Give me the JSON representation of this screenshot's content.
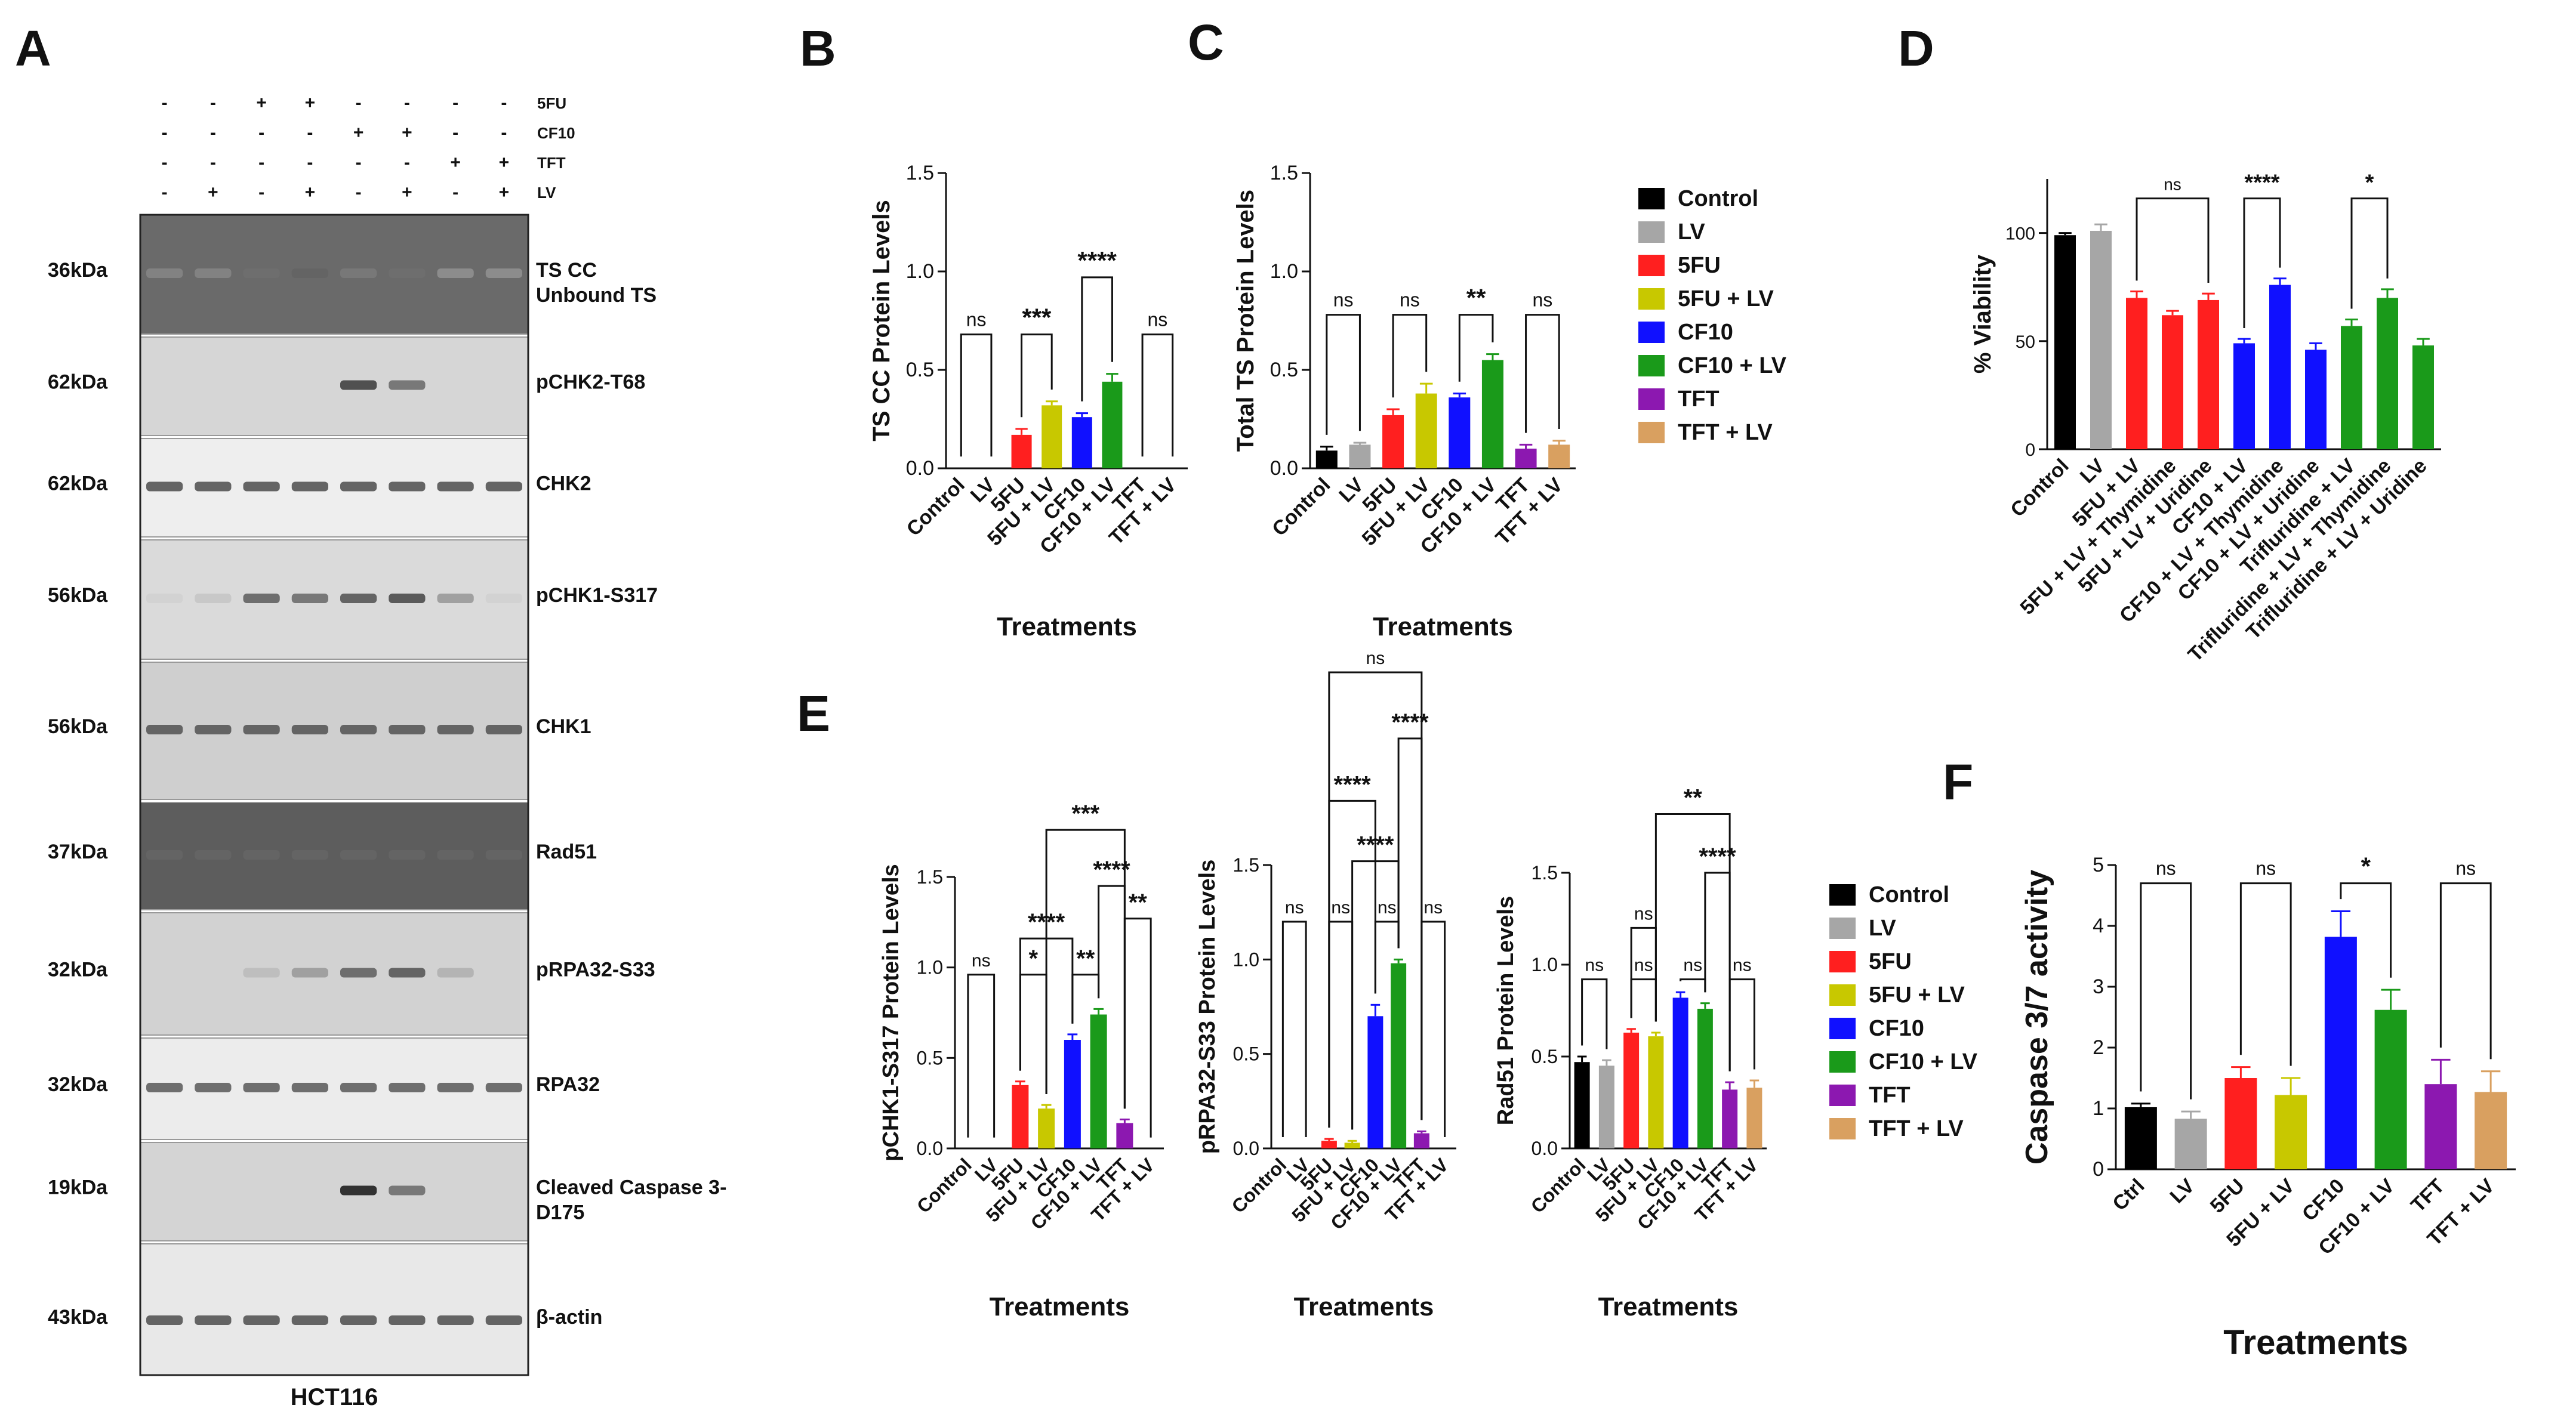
{
  "panel_labels": {
    "A": "A",
    "B": "B",
    "C": "C",
    "D": "D",
    "E": "E",
    "F": "F"
  },
  "colors": {
    "Control": "#000000",
    "LV": "#a6a6a6",
    "5FU": "#ff1f1f",
    "5FU + LV": "#c8c800",
    "CF10": "#1010ff",
    "CF10 + LV": "#1a9a1a",
    "TFT": "#8c18b0",
    "TFT + LV": "#d9a060",
    "Ctrl": "#000000"
  },
  "blot": {
    "treatment_rows": [
      "5FU",
      "CF10",
      "TFT",
      "LV"
    ],
    "treatment_signs": [
      [
        "-",
        "-",
        "+",
        "+",
        "-",
        "-",
        "-",
        "-"
      ],
      [
        "-",
        "-",
        "-",
        "-",
        "+",
        "+",
        "-",
        "-"
      ],
      [
        "-",
        "-",
        "-",
        "-",
        "-",
        "-",
        "+",
        "+"
      ],
      [
        "-",
        "+",
        "-",
        "+",
        "-",
        "+",
        "-",
        "+"
      ]
    ],
    "bands": [
      {
        "mw": "36kDa",
        "label": "TS CC",
        "label2": "Unbound TS",
        "intensity": [
          0.45,
          0.45,
          0.55,
          0.6,
          0.5,
          0.55,
          0.4,
          0.4
        ]
      },
      {
        "mw": "62kDa",
        "label": "pCHK2-T68",
        "intensity": [
          0,
          0,
          0,
          0,
          0.7,
          0.5,
          0,
          0
        ]
      },
      {
        "mw": "62kDa",
        "label": "CHK2",
        "intensity": [
          0.6,
          0.6,
          0.6,
          0.6,
          0.6,
          0.6,
          0.6,
          0.6
        ]
      },
      {
        "mw": "56kDa",
        "label": "pCHK1-S317",
        "intensity": [
          0.05,
          0.1,
          0.55,
          0.5,
          0.6,
          0.65,
          0.3,
          0.05
        ]
      },
      {
        "mw": "56kDa",
        "label": "CHK1",
        "intensity": [
          0.6,
          0.6,
          0.6,
          0.6,
          0.6,
          0.6,
          0.6,
          0.6
        ]
      },
      {
        "mw": "37kDa",
        "label": "Rad51",
        "intensity": [
          0.6,
          0.6,
          0.6,
          0.6,
          0.6,
          0.6,
          0.6,
          0.6
        ]
      },
      {
        "mw": "32kDa",
        "label": "pRPA32-S33",
        "intensity": [
          0,
          0,
          0.15,
          0.3,
          0.55,
          0.6,
          0.2,
          0
        ]
      },
      {
        "mw": "32kDa",
        "label": "RPA32",
        "intensity": [
          0.55,
          0.55,
          0.55,
          0.55,
          0.55,
          0.55,
          0.55,
          0.55
        ]
      },
      {
        "mw": "19kDa",
        "label": "Cleaved Caspase 3-",
        "label2": "D175",
        "intensity": [
          0,
          0,
          0,
          0,
          0.85,
          0.5,
          0,
          0
        ]
      },
      {
        "mw": "43kDa",
        "label": "β-actin",
        "intensity": [
          0.6,
          0.6,
          0.6,
          0.6,
          0.6,
          0.6,
          0.6,
          0.6
        ]
      }
    ],
    "cell_line": "HCT116"
  },
  "legend_top": {
    "items": [
      "Control",
      "LV",
      "5FU",
      "5FU + LV",
      "CF10",
      "CF10 + LV",
      "TFT",
      "TFT + LV"
    ]
  },
  "legend_bottom": {
    "items": [
      "Control",
      "LV",
      "5FU",
      "5FU + LV",
      "CF10",
      "CF10 + LV",
      "TFT",
      "TFT + LV"
    ]
  },
  "chart_data": [
    {
      "id": "B",
      "type": "bar",
      "ylabel": "TS CC Protein Levels",
      "xlabel": "Treatments",
      "ylim": [
        0,
        1.5
      ],
      "yticks": [
        "0.0",
        "0.5",
        "1.0",
        "1.5"
      ],
      "categories": [
        "Control",
        "LV",
        "5FU",
        "5FU + LV",
        "CF10",
        "CF10 + LV",
        "TFT",
        "TFT + LV"
      ],
      "values": [
        0,
        0,
        0.17,
        0.32,
        0.26,
        0.44,
        0,
        0
      ],
      "errors": [
        0,
        0,
        0.03,
        0.02,
        0.02,
        0.04,
        0,
        0
      ],
      "sig": [
        {
          "from": 0,
          "to": 1,
          "y": 0.68,
          "label": "ns"
        },
        {
          "from": 2,
          "to": 3,
          "y": 0.68,
          "label": "***"
        },
        {
          "from": 4,
          "to": 5,
          "y": 0.97,
          "label": "****"
        },
        {
          "from": 6,
          "to": 7,
          "y": 0.68,
          "label": "ns"
        }
      ]
    },
    {
      "id": "C",
      "type": "bar",
      "ylabel": "Total TS Protein Levels",
      "xlabel": "Treatments",
      "ylim": [
        0,
        1.5
      ],
      "yticks": [
        "0.0",
        "0.5",
        "1.0",
        "1.5"
      ],
      "categories": [
        "Control",
        "LV",
        "5FU",
        "5FU + LV",
        "CF10",
        "CF10 + LV",
        "TFT",
        "TFT + LV"
      ],
      "values": [
        0.09,
        0.12,
        0.27,
        0.38,
        0.36,
        0.55,
        0.1,
        0.12
      ],
      "errors": [
        0.02,
        0.01,
        0.03,
        0.05,
        0.02,
        0.03,
        0.02,
        0.02
      ],
      "sig": [
        {
          "from": 0,
          "to": 1,
          "y": 0.78,
          "label": "ns"
        },
        {
          "from": 2,
          "to": 3,
          "y": 0.78,
          "label": "ns"
        },
        {
          "from": 4,
          "to": 5,
          "y": 0.78,
          "label": "**"
        },
        {
          "from": 6,
          "to": 7,
          "y": 0.78,
          "label": "ns"
        }
      ]
    },
    {
      "id": "D",
      "type": "bar",
      "ylabel": "% Viability",
      "xlabel": "",
      "ylim": [
        0,
        125
      ],
      "yticks": [
        "0",
        "50",
        "100"
      ],
      "ytick_values": [
        0,
        50,
        100
      ],
      "categories": [
        "Control",
        "LV",
        "5FU + LV",
        "5FU + LV + Thymidine",
        "5FU + LV + Uridine",
        "CF10 + LV",
        "CF10 + LV + Thymidine",
        "CF10 + LV + Uridine",
        "Trifluridine + LV",
        "Trifluridine + LV + Thymidine",
        "Trifluridine + LV + Uridine"
      ],
      "display_labels": [
        "Control",
        "LV",
        "5FU + LV",
        "5FU + LV + Thymidine",
        "5FU + LV + Uridine",
        "CF10 + LV",
        "CF10 + LV + Thymidine",
        "CF10 + LV + Uridine",
        "Trifluridine + LV",
        "Trifluridine + LV + Thymidine",
        "Trifluridine + LV + Uridine"
      ],
      "values": [
        99,
        101,
        70,
        62,
        69,
        49,
        76,
        46,
        57,
        70,
        48
      ],
      "errors": [
        1,
        3,
        3,
        2,
        3,
        2,
        3,
        3,
        3,
        4,
        3
      ],
      "bar_colors": [
        "#000000",
        "#a6a6a6",
        "#ff1f1f",
        "#ff1f1f",
        "#ff1f1f",
        "#1010ff",
        "#1010ff",
        "#1010ff",
        "#1a9a1a",
        "#1a9a1a",
        "#1a9a1a"
      ],
      "sig": [
        {
          "from": 2,
          "to": 4,
          "y": 116,
          "label": "ns"
        },
        {
          "from": 5,
          "to": 6,
          "y": 116,
          "label": "****"
        },
        {
          "from": 8,
          "to": 9,
          "y": 116,
          "label": "*"
        }
      ]
    },
    {
      "id": "E1",
      "type": "bar",
      "ylabel": "pCHK1-S317 Protein  Levels",
      "xlabel": "Treatments",
      "ylim": [
        0,
        1.5
      ],
      "yticks": [
        "0.0",
        "0.5",
        "1.0",
        "1.5"
      ],
      "categories": [
        "Control",
        "LV",
        "5FU",
        "5FU + LV",
        "CF10",
        "CF10 + LV",
        "TFT",
        "TFT + LV"
      ],
      "display_labels": [
        "Control",
        "LV",
        "5FU",
        "5FU + LV",
        "CF10",
        "CF10 + LV",
        "TFT",
        "TFT + LV"
      ],
      "values": [
        0,
        0,
        0.35,
        0.22,
        0.6,
        0.74,
        0.14,
        0
      ],
      "errors": [
        0,
        0,
        0.02,
        0.02,
        0.03,
        0.03,
        0.02,
        0
      ],
      "sig": [
        {
          "from": 0,
          "to": 1,
          "y": 0.96,
          "label": "ns"
        },
        {
          "from": 2,
          "to": 3,
          "y": 0.96,
          "label": "*"
        },
        {
          "from": 4,
          "to": 5,
          "y": 0.96,
          "label": "**"
        },
        {
          "from": 6,
          "to": 7,
          "y": 1.27,
          "label": "**"
        },
        {
          "from": 2,
          "to": 4,
          "y": 1.16,
          "label": "****"
        },
        {
          "from": 5,
          "to": 6,
          "y": 1.45,
          "label": "****"
        },
        {
          "from": 3,
          "to": 6,
          "y": 1.76,
          "label": "***"
        }
      ]
    },
    {
      "id": "E2",
      "type": "bar",
      "ylabel": "pRPA32-S33 Protein Levels",
      "xlabel": "Treatments",
      "ylim": [
        0,
        1.5
      ],
      "yticks": [
        "0.0",
        "0.5",
        "1.0",
        "1.5"
      ],
      "categories": [
        "Control",
        "LV",
        "5FU",
        "5FU + LV",
        "CF10",
        "CF10 + LV",
        "TFT",
        "TFT + LV"
      ],
      "display_labels": [
        "Control",
        "LV",
        "5FU",
        "5FU + LV",
        "CF10",
        "CF10 + LV",
        "TFT",
        "TFT + LV"
      ],
      "values": [
        0,
        0,
        0.04,
        0.03,
        0.7,
        0.98,
        0.08,
        0
      ],
      "errors": [
        0,
        0,
        0.01,
        0.01,
        0.06,
        0.02,
        0.01,
        0
      ],
      "sig": [
        {
          "from": 0,
          "to": 1,
          "y": 1.2,
          "label": "ns"
        },
        {
          "from": 2,
          "to": 3,
          "y": 1.2,
          "label": "ns"
        },
        {
          "from": 4,
          "to": 5,
          "y": 1.2,
          "label": "ns"
        },
        {
          "from": 6,
          "to": 7,
          "y": 1.2,
          "label": "ns"
        },
        {
          "from": 3,
          "to": 5,
          "y": 1.52,
          "label": "****"
        },
        {
          "from": 2,
          "to": 4,
          "y": 1.84,
          "label": "****"
        },
        {
          "from": 5,
          "to": 6,
          "y": 2.17,
          "label": "****"
        },
        {
          "from": 2,
          "to": 6,
          "y": 2.52,
          "label": "ns"
        }
      ]
    },
    {
      "id": "E3",
      "type": "bar",
      "ylabel": "Rad51 Protein Levels",
      "xlabel": "Treatments",
      "ylim": [
        0,
        1.5
      ],
      "yticks": [
        "0.0",
        "0.5",
        "1.0",
        "1.5"
      ],
      "categories": [
        "Control",
        "LV",
        "5FU",
        "5FU + LV",
        "CF10",
        "CF10 + LV",
        "TFT",
        "TFT + LV"
      ],
      "display_labels": [
        "Control",
        "LV",
        "5FU",
        "5FU + LV",
        "CF10",
        "CF10 + LV",
        "TFT",
        "TFT + LV"
      ],
      "values": [
        0.47,
        0.45,
        0.63,
        0.61,
        0.82,
        0.76,
        0.32,
        0.33
      ],
      "errors": [
        0.03,
        0.03,
        0.02,
        0.02,
        0.03,
        0.03,
        0.04,
        0.04
      ],
      "sig": [
        {
          "from": 0,
          "to": 1,
          "y": 0.92,
          "label": "ns"
        },
        {
          "from": 2,
          "to": 3,
          "y": 0.92,
          "label": "ns"
        },
        {
          "from": 4,
          "to": 5,
          "y": 0.92,
          "label": "ns"
        },
        {
          "from": 6,
          "to": 7,
          "y": 0.92,
          "label": "ns"
        },
        {
          "from": 2,
          "to": 3,
          "y": 1.2,
          "label": "ns"
        },
        {
          "from": 5,
          "to": 6,
          "y": 1.5,
          "label": "****"
        },
        {
          "from": 3,
          "to": 6,
          "y": 1.82,
          "label": "**"
        }
      ]
    },
    {
      "id": "F",
      "type": "bar",
      "ylabel": "Caspase 3/7 activity",
      "xlabel": "Treatments",
      "ylim": [
        0,
        5
      ],
      "yticks": [
        "0",
        "1",
        "2",
        "3",
        "4",
        "5"
      ],
      "categories": [
        "Ctrl",
        "LV",
        "5FU",
        "5FU + LV",
        "CF10",
        "CF10 + LV",
        "TFT",
        "TFT + LV"
      ],
      "display_labels": [
        "Ctrl",
        "LV",
        "5FU",
        "5FU + LV",
        "CF10",
        "CF10 + LV",
        "TFT",
        "TFT + LV"
      ],
      "values": [
        1.02,
        0.83,
        1.5,
        1.22,
        3.82,
        2.62,
        1.4,
        1.27
      ],
      "errors": [
        0.06,
        0.12,
        0.18,
        0.28,
        0.42,
        0.33,
        0.4,
        0.34
      ],
      "sig": [
        {
          "from": 0,
          "to": 1,
          "y": 4.7,
          "label": "ns"
        },
        {
          "from": 2,
          "to": 3,
          "y": 4.7,
          "label": "ns"
        },
        {
          "from": 4,
          "to": 5,
          "y": 4.7,
          "label": "*"
        },
        {
          "from": 6,
          "to": 7,
          "y": 4.7,
          "label": "ns"
        }
      ]
    }
  ]
}
